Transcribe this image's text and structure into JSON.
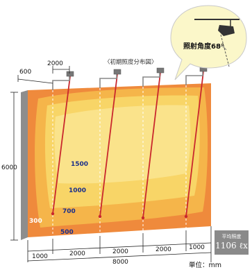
{
  "caption": "〈初期照度分布図〉",
  "zoom": {
    "label": "照射角度68°"
  },
  "top_dims": {
    "overhang": "600",
    "arm_spacing": "2000"
  },
  "height": "6000",
  "contours": {
    "c1500": "1500",
    "c1000": "1000",
    "c700": "700",
    "c500": "500",
    "c300": "300"
  },
  "bottom_dims": [
    "1000",
    "2000",
    "2000",
    "2000",
    "1000"
  ],
  "total_width": "8000",
  "unit": "単位：mm",
  "average": {
    "title": "平均照度",
    "value": "1106 ℓx"
  },
  "colors": {
    "outer": "#ef8a3c",
    "mid": "#f5b54a",
    "inner": "#f8d567",
    "core": "#fae38b",
    "beam": "#c9272d",
    "dash": "#ffffff"
  }
}
